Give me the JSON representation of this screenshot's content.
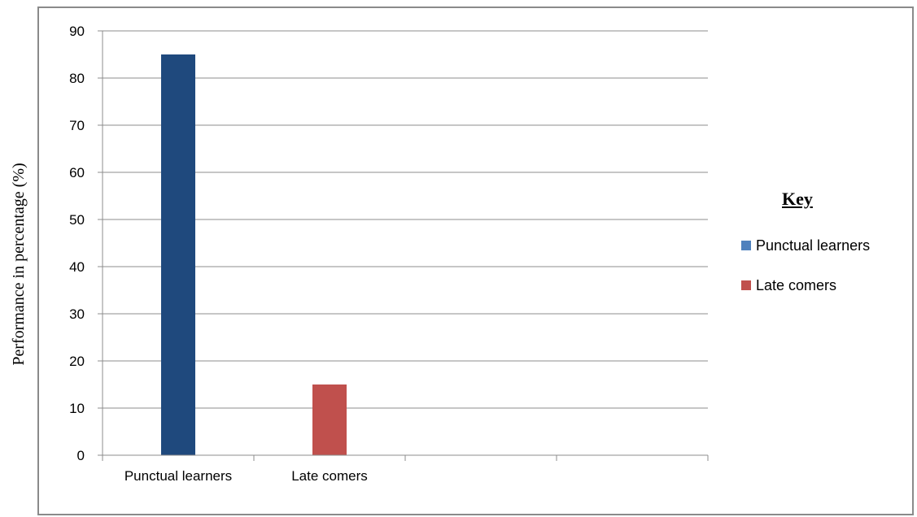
{
  "chart_data": {
    "type": "bar",
    "categories": [
      "Punctual learners",
      "Late comers"
    ],
    "series": [
      {
        "name": "Punctual learners",
        "values": [
          85,
          null
        ],
        "color": "#1f497d"
      },
      {
        "name": "Late comers",
        "values": [
          null,
          15
        ],
        "color": "#c0504d"
      }
    ],
    "values": [
      85,
      15
    ],
    "colors": [
      "#1f497d",
      "#c0504d"
    ],
    "title": "",
    "xlabel": "",
    "ylabel": "Performance in percentage (%)",
    "ylim": [
      0,
      90
    ],
    "yticks": [
      0,
      10,
      20,
      30,
      40,
      50,
      60,
      70,
      80,
      90
    ],
    "x_slots": 4,
    "grid": true,
    "legend": {
      "title": "Key",
      "position": "right",
      "items": [
        {
          "label": "Punctual learners",
          "color": "#4f81bd"
        },
        {
          "label": "Late comers",
          "color": "#c0504d"
        }
      ]
    }
  }
}
